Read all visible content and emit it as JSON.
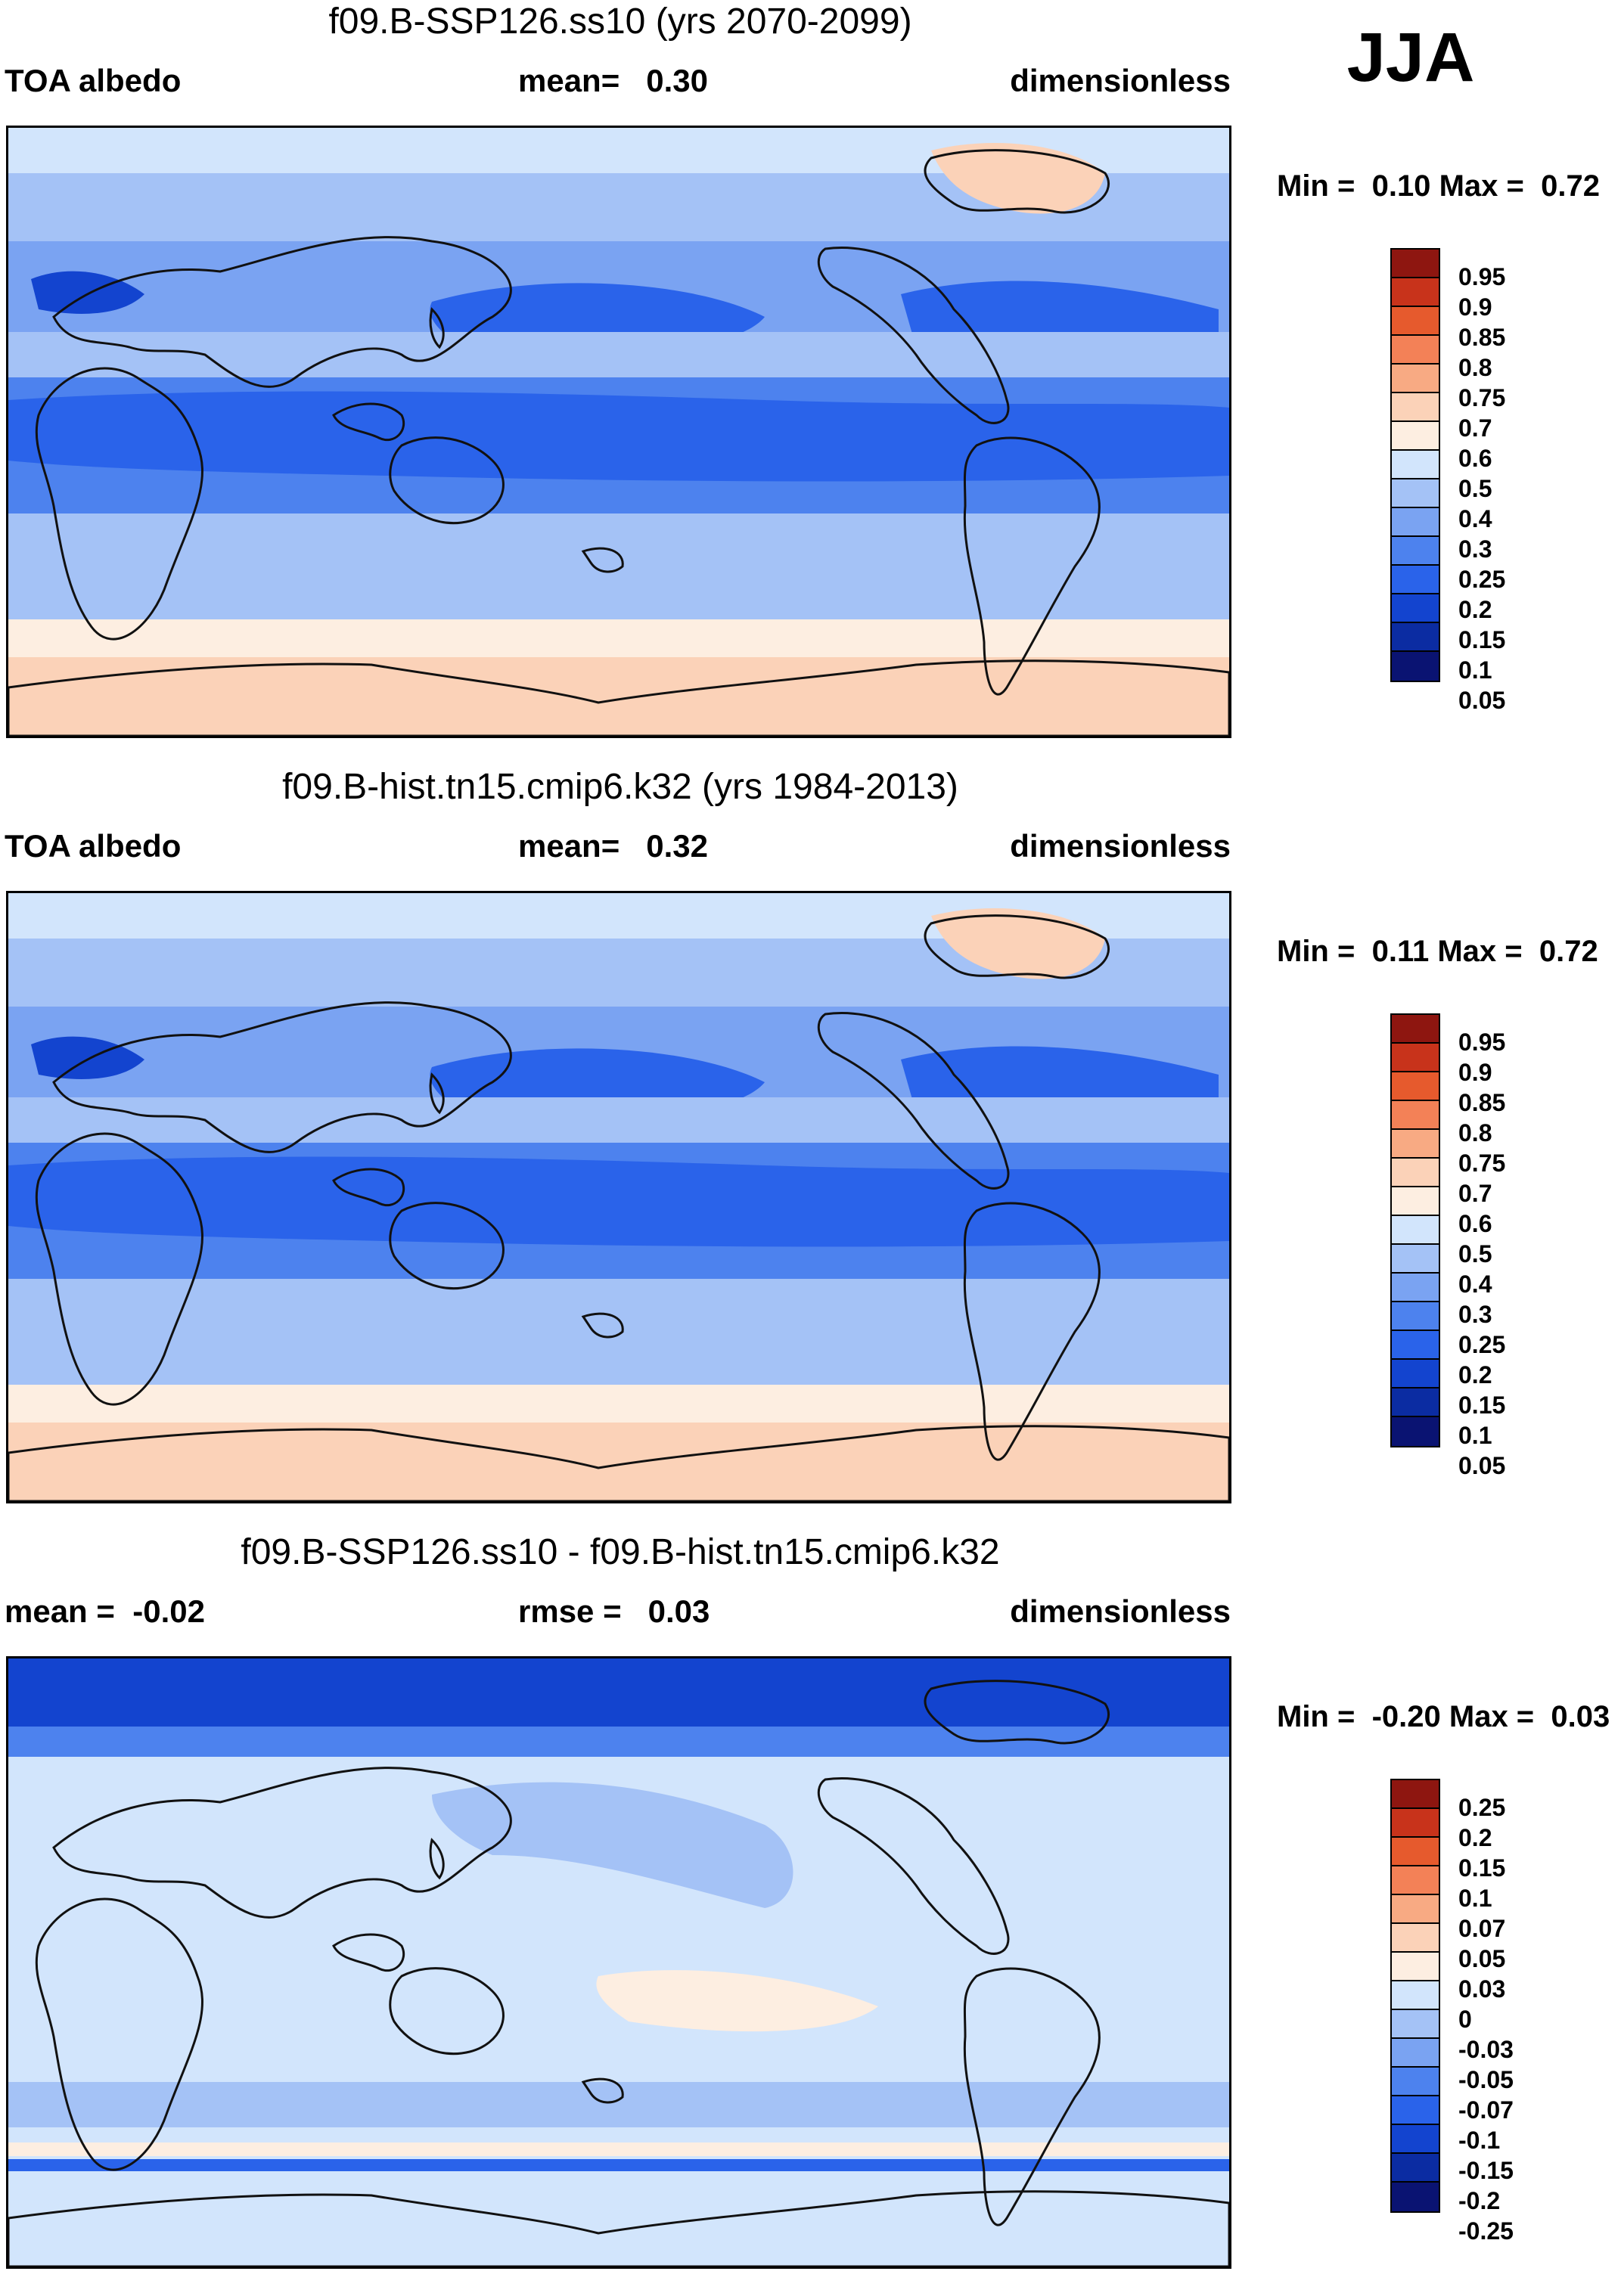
{
  "season": "JJA",
  "palettes": {
    "abs": [
      "#0a1372",
      "#0b2ca2",
      "#1344cf",
      "#2a63ea",
      "#4d82ee",
      "#7aa3f2",
      "#a4c2f6",
      "#d2e5fc",
      "#fdeee1",
      "#fbd2b8",
      "#f8aa83",
      "#f38157",
      "#e65a2d",
      "#c8331b",
      "#8e1610"
    ],
    "diff": [
      "#0a1372",
      "#0b2ca2",
      "#1344cf",
      "#2a63ea",
      "#4d82ee",
      "#7aa3f2",
      "#a4c2f6",
      "#d2e5fc",
      "#fdeee1",
      "#fbd2b8",
      "#f8aa83",
      "#f38157",
      "#e65a2d",
      "#c8331b",
      "#8e1610"
    ]
  },
  "panels": [
    {
      "title": "f09.B-SSP126.ss10 (yrs 2070-2099)",
      "left_label": "TOA albedo",
      "middle_label": "mean=",
      "middle_value": "0.30",
      "right_label": "dimensionless",
      "min_label": "Min =",
      "min_value": "0.10",
      "max_label": "Max =",
      "max_value": "0.72",
      "colorbar_labels": [
        "0.95",
        "0.9",
        "0.85",
        "0.8",
        "0.75",
        "0.7",
        "0.6",
        "0.5",
        "0.4",
        "0.3",
        "0.25",
        "0.2",
        "0.15",
        "0.1",
        "0.05"
      ],
      "palette": "abs"
    },
    {
      "title": "f09.B-hist.tn15.cmip6.k32 (yrs 1984-2013)",
      "left_label": "TOA albedo",
      "middle_label": "mean=",
      "middle_value": "0.32",
      "right_label": "dimensionless",
      "min_label": "Min =",
      "min_value": "0.11",
      "max_label": "Max =",
      "max_value": "0.72",
      "colorbar_labels": [
        "0.95",
        "0.9",
        "0.85",
        "0.8",
        "0.75",
        "0.7",
        "0.6",
        "0.5",
        "0.4",
        "0.3",
        "0.25",
        "0.2",
        "0.15",
        "0.1",
        "0.05"
      ],
      "palette": "abs"
    },
    {
      "title": "f09.B-SSP126.ss10 - f09.B-hist.tn15.cmip6.k32",
      "left_label": "mean =",
      "left_value": "-0.02",
      "middle_label": "rmse =",
      "middle_value": "0.03",
      "right_label": "dimensionless",
      "min_label": "Min =",
      "min_value": "-0.20",
      "max_label": "Max =",
      "max_value": "0.03",
      "colorbar_labels": [
        "0.25",
        "0.2",
        "0.15",
        "0.1",
        "0.07",
        "0.05",
        "0.03",
        "0",
        "-0.03",
        "-0.05",
        "-0.07",
        "-0.1",
        "-0.15",
        "-0.2",
        "-0.25"
      ],
      "palette": "diff"
    }
  ]
}
